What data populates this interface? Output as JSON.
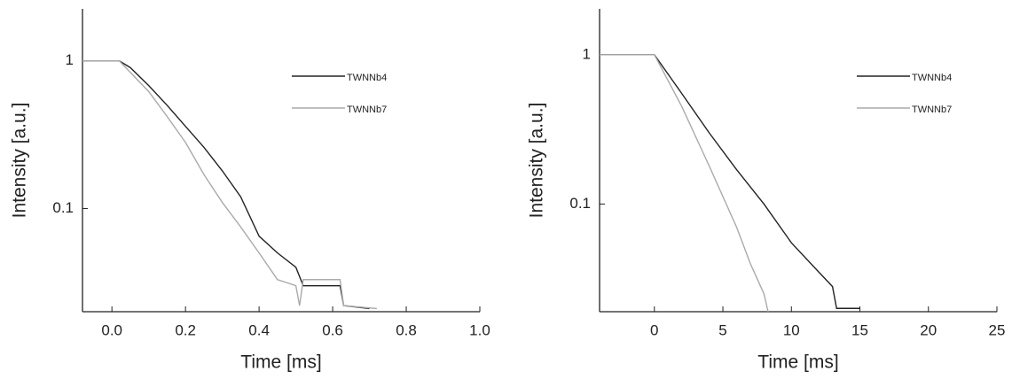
{
  "chart_data": [
    {
      "type": "line",
      "xlabel": "Time [ms]",
      "ylabel": "Intensity [a.u.]",
      "yscale": "log",
      "xlim": [
        -0.08,
        1.0
      ],
      "ylim": [
        0.02,
        2.25
      ],
      "xticks": [
        {
          "value": 0,
          "label": "0.0"
        },
        0.2,
        0.4,
        0.6,
        0.8,
        {
          "value": 1,
          "label": "1.0"
        }
      ],
      "yticks": [
        1,
        0.1
      ],
      "series": [
        {
          "name": "TWNNb4",
          "color": "#222222",
          "x": [
            -0.08,
            0.02,
            0.05,
            0.1,
            0.15,
            0.2,
            0.25,
            0.3,
            0.35,
            0.4,
            0.45,
            0.5,
            0.52,
            0.55,
            0.62,
            0.63,
            0.7
          ],
          "values": [
            1,
            1,
            0.9,
            0.68,
            0.5,
            0.36,
            0.26,
            0.18,
            0.12,
            0.065,
            0.05,
            0.04,
            0.03,
            0.03,
            0.03,
            0.022,
            0.021
          ]
        },
        {
          "name": "TWNNb7",
          "color": "#aaaaaa",
          "x": [
            -0.08,
            0.02,
            0.1,
            0.15,
            0.2,
            0.25,
            0.3,
            0.35,
            0.4,
            0.45,
            0.5,
            0.51,
            0.52,
            0.55,
            0.62,
            0.63,
            0.72
          ],
          "values": [
            1,
            1,
            0.62,
            0.42,
            0.28,
            0.17,
            0.11,
            0.075,
            0.05,
            0.033,
            0.03,
            0.022,
            0.033,
            0.033,
            0.033,
            0.022,
            0.021
          ]
        }
      ]
    },
    {
      "type": "line",
      "xlabel": "Time [ms]",
      "ylabel": "Intensity [a.u.]",
      "yscale": "log",
      "xlim": [
        -4,
        25
      ],
      "ylim": [
        0.019,
        2.03
      ],
      "xticks": [
        0,
        5,
        10,
        15,
        20,
        25
      ],
      "yticks": [
        1,
        0.1
      ],
      "series": [
        {
          "name": "TWNNb4",
          "color": "#222222",
          "x": [
            -4,
            0,
            2,
            4,
            6,
            8,
            10,
            12,
            13,
            13.3,
            15
          ],
          "values": [
            1,
            1,
            0.55,
            0.3,
            0.17,
            0.1,
            0.055,
            0.035,
            0.028,
            0.02,
            0.02
          ]
        },
        {
          "name": "TWNNb7",
          "color": "#aaaaaa",
          "x": [
            -4,
            0,
            2,
            4,
            6,
            7,
            8,
            8.3
          ],
          "values": [
            1,
            1,
            0.45,
            0.18,
            0.07,
            0.04,
            0.025,
            0.019
          ]
        }
      ]
    }
  ]
}
